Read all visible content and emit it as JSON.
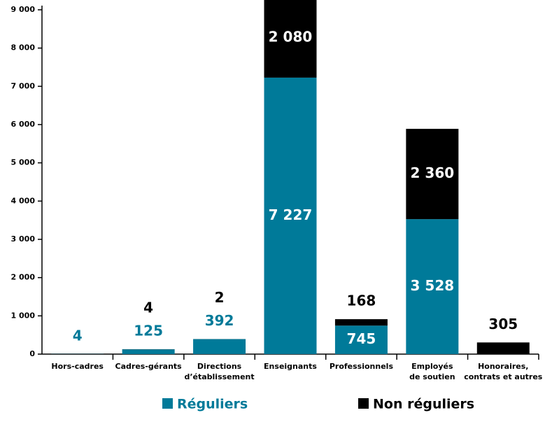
{
  "chart_data": {
    "type": "stacked_bar",
    "categories": [
      "Hors-cadres",
      "Cadres-gérants",
      "Directions\nd’établissement",
      "Enseignants",
      "Professionnels",
      "Employés\nde soutien",
      "Honoraires,\ncontrats et autres"
    ],
    "series": [
      {
        "name": "Réguliers",
        "color": "#007a99",
        "values": [
          4,
          125,
          392,
          7227,
          745,
          3528,
          null
        ],
        "value_labels": [
          "4",
          "125",
          "392",
          "7 227",
          "745",
          "3 528",
          null
        ]
      },
      {
        "name": "Non réguliers",
        "color": "#000000",
        "values": [
          null,
          4,
          2,
          2080,
          168,
          2360,
          305
        ],
        "value_labels": [
          null,
          "4",
          "2",
          "2 080",
          "168",
          "2 360",
          "305"
        ]
      }
    ],
    "ylim": [
      0,
      9000
    ],
    "yticks": [
      0,
      {
        "value": 1000,
        "label": "1 000"
      },
      {
        "value": 2000,
        "label": "2 000"
      },
      {
        "value": 3000,
        "label": "3 000"
      },
      {
        "value": 4000,
        "label": "4 000"
      },
      {
        "value": 5000,
        "label": "5 000"
      },
      {
        "value": 6000,
        "label": "6 000"
      },
      {
        "value": 7000,
        "label": "7 000"
      },
      {
        "value": 8000,
        "label": "8 000"
      },
      {
        "value": 9000,
        "label": "9 000"
      }
    ],
    "legend": "bottom"
  }
}
